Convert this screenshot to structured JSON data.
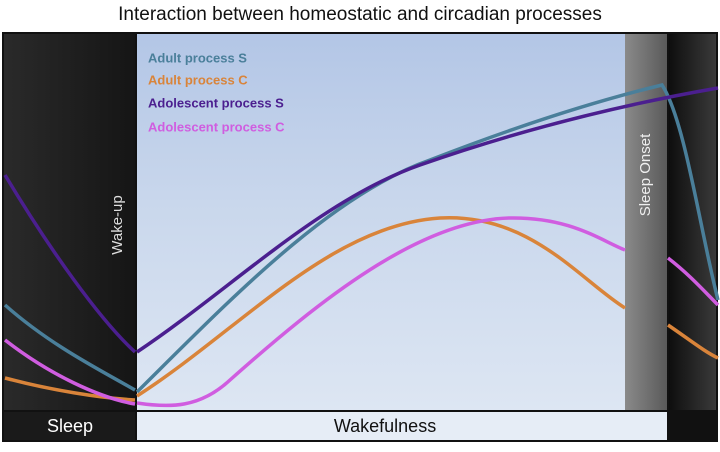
{
  "title": "Interaction between homeostatic and circadian processes",
  "legend": [
    "Adult process S",
    "Adult process C",
    "Adolescent process S",
    "Adolescent process C"
  ],
  "labels": {
    "wake_up": "Wake-up",
    "sleep_onset": "Sleep Onset",
    "sleep": "Sleep",
    "wakefulness": "Wakefulness"
  }
}
